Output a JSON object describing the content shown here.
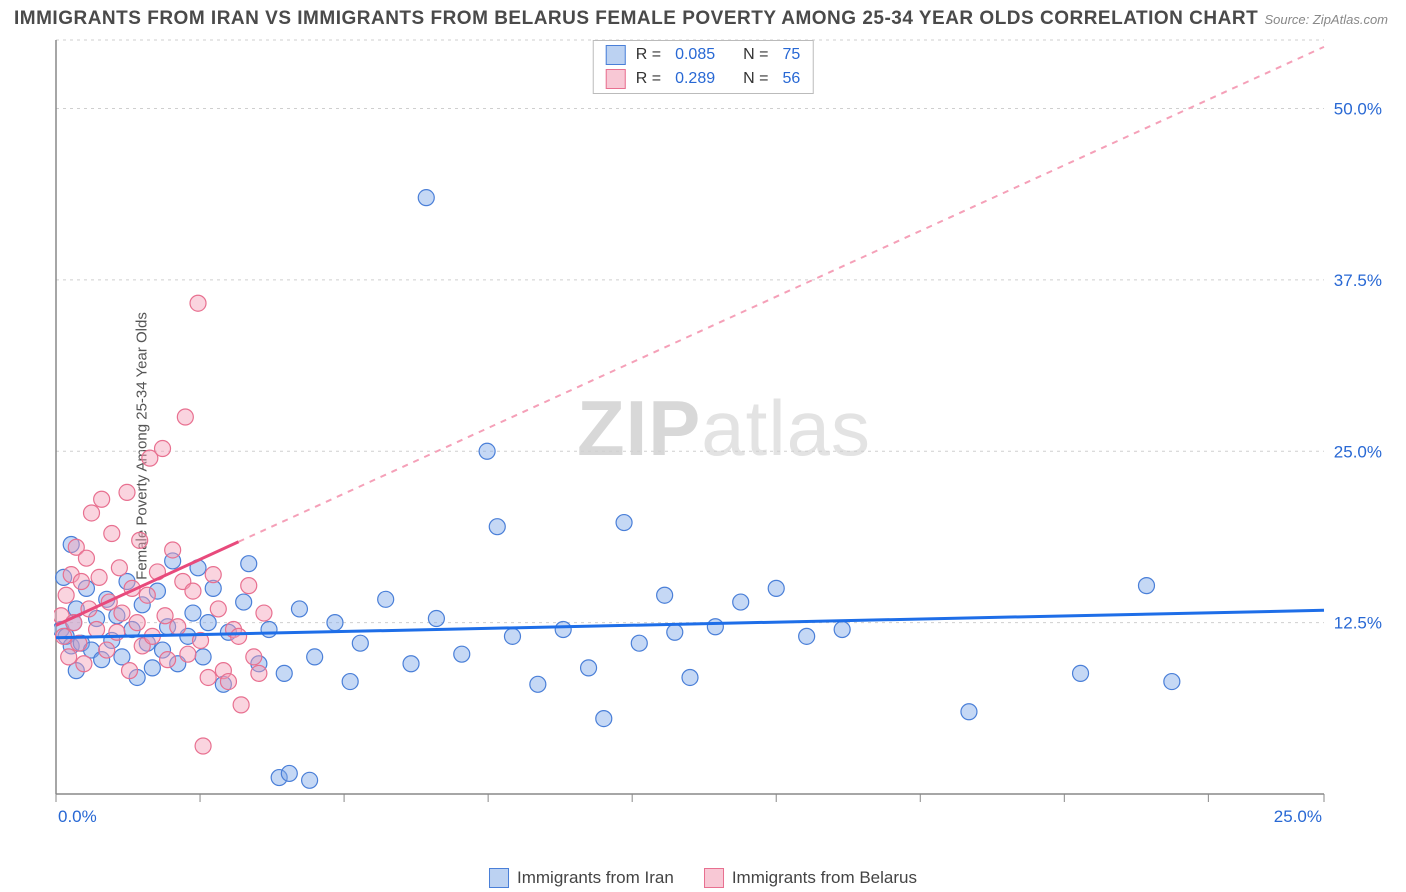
{
  "title": "IMMIGRANTS FROM IRAN VS IMMIGRANTS FROM BELARUS FEMALE POVERTY AMONG 25-34 YEAR OLDS CORRELATION CHART",
  "source": "Source: ZipAtlas.com",
  "watermark_bold": "ZIP",
  "watermark_light": "atlas",
  "y_axis_label": "Female Poverty Among 25-34 Year Olds",
  "chart": {
    "type": "scatter",
    "xlim": [
      0,
      25
    ],
    "ylim": [
      0,
      55
    ],
    "x_ticks": [
      0,
      2.84,
      5.68,
      8.52,
      11.36,
      14.2,
      17.04,
      19.88,
      22.72,
      25
    ],
    "y_gridlines": [
      12.5,
      25,
      37.5,
      50,
      55
    ],
    "y_tick_labels": [
      {
        "v": 12.5,
        "t": "12.5%"
      },
      {
        "v": 25,
        "t": "25.0%"
      },
      {
        "v": 37.5,
        "t": "37.5%"
      },
      {
        "v": 50,
        "t": "50.0%"
      }
    ],
    "x_labels_shown": [
      {
        "v": 0,
        "t": "0.0%"
      },
      {
        "v": 25,
        "t": "25.0%"
      }
    ],
    "axis_color": "#888888",
    "grid_color": "#cfcfcf",
    "grid_dash": "3,4",
    "background": "#ffffff",
    "series": [
      {
        "name": "Immigrants from Iran",
        "fill": "#7fa8e8",
        "fill_opacity": 0.45,
        "stroke": "#4a7fd8",
        "marker_radius": 8,
        "trend": {
          "x1": 0,
          "y1": 11.4,
          "x2": 25,
          "y2": 13.4,
          "color": "#1e6ee8",
          "width": 3,
          "dash": null
        },
        "points": [
          [
            0.1,
            12.0
          ],
          [
            0.15,
            15.8
          ],
          [
            0.2,
            11.5
          ],
          [
            0.3,
            10.8
          ],
          [
            0.3,
            18.2
          ],
          [
            0.35,
            12.5
          ],
          [
            0.4,
            9.0
          ],
          [
            0.4,
            13.5
          ],
          [
            0.5,
            11.0
          ],
          [
            0.6,
            15.0
          ],
          [
            0.7,
            10.5
          ],
          [
            0.8,
            12.8
          ],
          [
            0.9,
            9.8
          ],
          [
            1.0,
            14.2
          ],
          [
            1.1,
            11.2
          ],
          [
            1.2,
            13.0
          ],
          [
            1.3,
            10.0
          ],
          [
            1.4,
            15.5
          ],
          [
            1.5,
            12.0
          ],
          [
            1.6,
            8.5
          ],
          [
            1.7,
            13.8
          ],
          [
            1.8,
            11.0
          ],
          [
            1.9,
            9.2
          ],
          [
            2.0,
            14.8
          ],
          [
            2.1,
            10.5
          ],
          [
            2.2,
            12.2
          ],
          [
            2.3,
            17.0
          ],
          [
            2.4,
            9.5
          ],
          [
            2.6,
            11.5
          ],
          [
            2.7,
            13.2
          ],
          [
            2.8,
            16.5
          ],
          [
            2.9,
            10.0
          ],
          [
            3.0,
            12.5
          ],
          [
            3.1,
            15.0
          ],
          [
            3.3,
            8.0
          ],
          [
            3.4,
            11.8
          ],
          [
            3.7,
            14.0
          ],
          [
            3.8,
            16.8
          ],
          [
            4.0,
            9.5
          ],
          [
            4.2,
            12.0
          ],
          [
            4.4,
            1.2
          ],
          [
            4.5,
            8.8
          ],
          [
            4.6,
            1.5
          ],
          [
            4.8,
            13.5
          ],
          [
            5.0,
            1.0
          ],
          [
            5.1,
            10.0
          ],
          [
            5.5,
            12.5
          ],
          [
            5.8,
            8.2
          ],
          [
            6.0,
            11.0
          ],
          [
            6.5,
            14.2
          ],
          [
            7.0,
            9.5
          ],
          [
            7.3,
            43.5
          ],
          [
            7.5,
            12.8
          ],
          [
            8.0,
            10.2
          ],
          [
            8.5,
            25.0
          ],
          [
            8.7,
            19.5
          ],
          [
            9.0,
            11.5
          ],
          [
            9.5,
            8.0
          ],
          [
            10.0,
            12.0
          ],
          [
            10.5,
            9.2
          ],
          [
            10.8,
            5.5
          ],
          [
            11.2,
            19.8
          ],
          [
            11.5,
            11.0
          ],
          [
            12.0,
            14.5
          ],
          [
            12.2,
            11.8
          ],
          [
            12.5,
            8.5
          ],
          [
            13.0,
            12.2
          ],
          [
            13.5,
            14.0
          ],
          [
            14.2,
            15.0
          ],
          [
            14.8,
            11.5
          ],
          [
            15.5,
            12.0
          ],
          [
            18.0,
            6.0
          ],
          [
            20.2,
            8.8
          ],
          [
            21.5,
            15.2
          ],
          [
            22.0,
            8.2
          ]
        ]
      },
      {
        "name": "Immigrants from Belarus",
        "fill": "#f5a0b8",
        "fill_opacity": 0.45,
        "stroke": "#e87090",
        "marker_radius": 8,
        "trend_solid": {
          "x1": 0,
          "y1": 12.3,
          "x2": 3.6,
          "y2": 18.4,
          "color": "#e84a7c",
          "width": 3
        },
        "trend_dashed": {
          "x1": 3.6,
          "y1": 18.4,
          "x2": 25,
          "y2": 54.5,
          "color": "#f5a0b8",
          "width": 2,
          "dash": "6,6"
        },
        "points": [
          [
            0.1,
            13.0
          ],
          [
            0.15,
            11.5
          ],
          [
            0.2,
            14.5
          ],
          [
            0.25,
            10.0
          ],
          [
            0.3,
            16.0
          ],
          [
            0.35,
            12.5
          ],
          [
            0.4,
            18.0
          ],
          [
            0.45,
            11.0
          ],
          [
            0.5,
            15.5
          ],
          [
            0.55,
            9.5
          ],
          [
            0.6,
            17.2
          ],
          [
            0.65,
            13.5
          ],
          [
            0.7,
            20.5
          ],
          [
            0.8,
            12.0
          ],
          [
            0.85,
            15.8
          ],
          [
            0.9,
            21.5
          ],
          [
            1.0,
            10.5
          ],
          [
            1.05,
            14.0
          ],
          [
            1.1,
            19.0
          ],
          [
            1.2,
            11.8
          ],
          [
            1.25,
            16.5
          ],
          [
            1.3,
            13.2
          ],
          [
            1.4,
            22.0
          ],
          [
            1.45,
            9.0
          ],
          [
            1.5,
            15.0
          ],
          [
            1.6,
            12.5
          ],
          [
            1.65,
            18.5
          ],
          [
            1.7,
            10.8
          ],
          [
            1.8,
            14.5
          ],
          [
            1.85,
            24.5
          ],
          [
            1.9,
            11.5
          ],
          [
            2.0,
            16.2
          ],
          [
            2.1,
            25.2
          ],
          [
            2.15,
            13.0
          ],
          [
            2.2,
            9.8
          ],
          [
            2.3,
            17.8
          ],
          [
            2.4,
            12.2
          ],
          [
            2.5,
            15.5
          ],
          [
            2.55,
            27.5
          ],
          [
            2.6,
            10.2
          ],
          [
            2.7,
            14.8
          ],
          [
            2.8,
            35.8
          ],
          [
            2.85,
            11.2
          ],
          [
            2.9,
            3.5
          ],
          [
            3.0,
            8.5
          ],
          [
            3.1,
            16.0
          ],
          [
            3.2,
            13.5
          ],
          [
            3.3,
            9.0
          ],
          [
            3.4,
            8.2
          ],
          [
            3.5,
            12.0
          ],
          [
            3.6,
            11.5
          ],
          [
            3.65,
            6.5
          ],
          [
            3.8,
            15.2
          ],
          [
            3.9,
            10.0
          ],
          [
            4.0,
            8.8
          ],
          [
            4.1,
            13.2
          ]
        ]
      }
    ]
  },
  "legend_top": {
    "rows": [
      {
        "swatch_fill": "#bcd2f2",
        "swatch_stroke": "#4a7fd8",
        "r_label": "R =",
        "r_value": "0.085",
        "n_label": "N =",
        "n_value": "75"
      },
      {
        "swatch_fill": "#f8c8d5",
        "swatch_stroke": "#e87090",
        "r_label": "R =",
        "r_value": "0.289",
        "n_label": "N =",
        "n_value": "56"
      }
    ]
  },
  "legend_bottom": {
    "items": [
      {
        "swatch_fill": "#bcd2f2",
        "swatch_stroke": "#4a7fd8",
        "label": "Immigrants from Iran"
      },
      {
        "swatch_fill": "#f8c8d5",
        "swatch_stroke": "#e87090",
        "label": "Immigrants from Belarus"
      }
    ]
  }
}
